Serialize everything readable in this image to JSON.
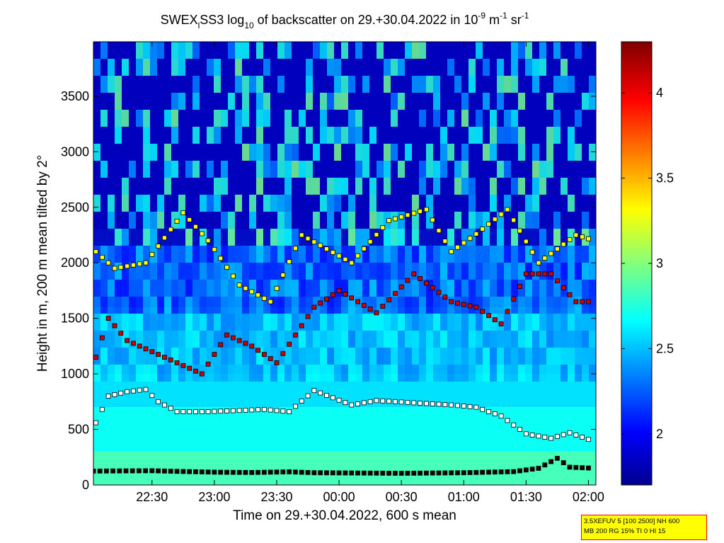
{
  "chart_data": {
    "type": "heatmap",
    "title": {
      "part1": "SWEX",
      "sub1": "l",
      "part2": "SS3 log",
      "sub2": "10",
      "part3": " of backscatter on 29.+30.04.2022 in 10",
      "sup1": "-9",
      "part4": " m",
      "sup2": "-1",
      "part5": " sr",
      "sup3": "-1"
    },
    "xlabel": "Time on 29.+30.04.2022, 600 s mean",
    "ylabel": "Height in m, 200 m mean tilted by 2°",
    "x_ticks": [
      "22:30",
      "23:00",
      "23:30",
      "00:00",
      "00:30",
      "01:00",
      "01:30",
      "02:00"
    ],
    "x_tick_hours": [
      22.5,
      23.0,
      23.5,
      24.0,
      24.5,
      25.0,
      25.5,
      26.0
    ],
    "x_range_hours": [
      22.03,
      26.06
    ],
    "y_ticks": [
      0,
      500,
      1000,
      1500,
      2000,
      2500,
      3000,
      3500
    ],
    "ylim": [
      0,
      3990
    ],
    "colorbar": {
      "ticks": [
        2,
        2.5,
        3,
        3.5,
        4
      ],
      "range": [
        1.7,
        4.3
      ],
      "colormap": "jet"
    },
    "layers": [
      {
        "height_top": 300,
        "value": 2.85
      },
      {
        "height_top": 700,
        "value": 2.7
      },
      {
        "height_top": 1000,
        "value": 2.6
      },
      {
        "height_top": 1600,
        "value": 2.45
      },
      {
        "height_top": 2300,
        "value": 2.25
      },
      {
        "height_top": 3990,
        "value": 1.9
      }
    ],
    "marker_tracks": [
      {
        "name": "",
        "color": "#1a0000",
        "points": [
          [
            22.03,
            125
          ],
          [
            22.5,
            128
          ],
          [
            22.8,
            120
          ],
          [
            23.0,
            115
          ],
          [
            23.3,
            112
          ],
          [
            23.6,
            118
          ],
          [
            23.8,
            110
          ],
          [
            24.5,
            105
          ],
          [
            25.0,
            110
          ],
          [
            25.4,
            120
          ],
          [
            25.6,
            150
          ],
          [
            25.75,
            240
          ],
          [
            25.85,
            160
          ],
          [
            26.05,
            150
          ]
        ]
      },
      {
        "name": "",
        "color": "#ffffff",
        "points": [
          [
            22.05,
            560
          ],
          [
            22.15,
            800
          ],
          [
            22.3,
            840
          ],
          [
            22.45,
            860
          ],
          [
            22.55,
            750
          ],
          [
            22.7,
            660
          ],
          [
            22.95,
            660
          ],
          [
            23.4,
            680
          ],
          [
            23.6,
            660
          ],
          [
            23.8,
            850
          ],
          [
            24.1,
            720
          ],
          [
            24.3,
            760
          ],
          [
            24.6,
            740
          ],
          [
            24.9,
            720
          ],
          [
            25.1,
            700
          ],
          [
            25.3,
            620
          ],
          [
            25.5,
            460
          ],
          [
            25.7,
            420
          ],
          [
            25.85,
            470
          ],
          [
            26.05,
            390
          ]
        ]
      },
      {
        "name": "",
        "color": "#cc0000",
        "points": [
          [
            22.05,
            1150
          ],
          [
            22.15,
            1500
          ],
          [
            22.3,
            1300
          ],
          [
            22.5,
            1200
          ],
          [
            22.7,
            1100
          ],
          [
            22.9,
            1000
          ],
          [
            23.1,
            1350
          ],
          [
            23.3,
            1250
          ],
          [
            23.5,
            1100
          ],
          [
            23.8,
            1600
          ],
          [
            24.0,
            1750
          ],
          [
            24.3,
            1550
          ],
          [
            24.6,
            1900
          ],
          [
            24.9,
            1650
          ],
          [
            25.1,
            1600
          ],
          [
            25.3,
            1450
          ],
          [
            25.5,
            1900
          ],
          [
            25.7,
            1900
          ],
          [
            25.9,
            1650
          ],
          [
            26.05,
            1650
          ]
        ]
      },
      {
        "name": "",
        "color": "#ffff00",
        "points": [
          [
            22.05,
            2100
          ],
          [
            22.2,
            1950
          ],
          [
            22.45,
            2000
          ],
          [
            22.75,
            2450
          ],
          [
            22.95,
            2200
          ],
          [
            23.2,
            1800
          ],
          [
            23.45,
            1650
          ],
          [
            23.7,
            2250
          ],
          [
            24.1,
            2000
          ],
          [
            24.4,
            2380
          ],
          [
            24.7,
            2480
          ],
          [
            24.9,
            2100
          ],
          [
            25.1,
            2260
          ],
          [
            25.35,
            2480
          ],
          [
            25.6,
            2000
          ],
          [
            25.9,
            2250
          ],
          [
            26.05,
            2200
          ]
        ]
      }
    ]
  },
  "info_box": {
    "line1": "3.5XEFUV 5 [100 2500] NH 600",
    "line2": "MB 200 RG 15% TI 0 HI 15"
  }
}
